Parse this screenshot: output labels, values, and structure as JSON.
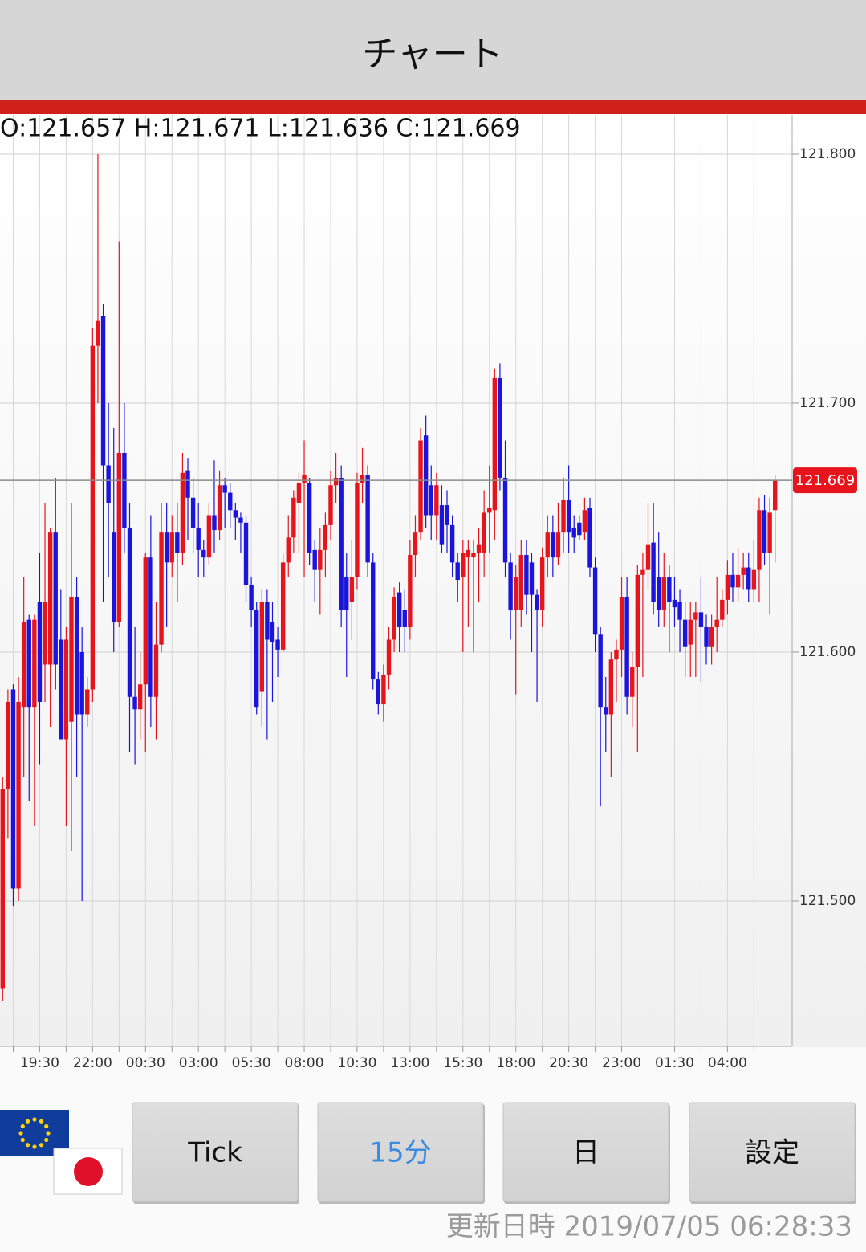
{
  "header": {
    "title": "チャート"
  },
  "chart_data": {
    "type": "candlestick",
    "ohlc_label": "O:121.657 H:121.671 L:121.636 C:121.669",
    "categories": [
      null,
      null,
      null,
      null,
      null,
      null,
      null,
      "19:30",
      null,
      null,
      null,
      null,
      null,
      null,
      null,
      null,
      null,
      "22:00",
      null,
      null,
      null,
      null,
      null,
      null,
      null,
      null,
      null,
      "00:30",
      null,
      null,
      null,
      null,
      null,
      null,
      null,
      null,
      null,
      "03:00",
      null,
      null,
      null,
      null,
      null,
      null,
      null,
      null,
      null,
      "05:30",
      null,
      null,
      null,
      null,
      null,
      null,
      null,
      null,
      null,
      "08:00",
      null,
      null,
      null,
      null,
      null,
      null,
      null,
      null,
      null,
      "10:30",
      null,
      null,
      null,
      null,
      null,
      null,
      null,
      null,
      null,
      "13:00",
      null,
      null,
      null,
      null,
      null,
      null,
      null,
      null,
      null,
      "15:30",
      null,
      null,
      null,
      null,
      null,
      null,
      null,
      null,
      null,
      "18:00",
      null,
      null,
      null,
      null,
      null,
      null,
      null,
      null,
      null,
      "20:30",
      null,
      null,
      null,
      null,
      null,
      null,
      null,
      null,
      null,
      "23:00",
      null,
      null,
      null,
      null,
      null,
      null,
      null,
      null,
      null,
      "01:30",
      null,
      null,
      null,
      null,
      null,
      null,
      null,
      null,
      null,
      "04:00",
      null,
      null,
      null,
      null,
      null,
      null,
      null,
      null,
      null
    ],
    "open": [
      121.465,
      121.545,
      121.585,
      121.505,
      121.578,
      121.613,
      121.578,
      121.62,
      121.595,
      121.595,
      121.648,
      121.605,
      121.565,
      121.572,
      121.622,
      121.6,
      121.575,
      121.585,
      121.723,
      121.735,
      121.675,
      121.648,
      121.612,
      121.68,
      121.65,
      121.582,
      121.577,
      121.587,
      121.638,
      121.582,
      121.603,
      121.648,
      121.636,
      121.648,
      121.64,
      121.673,
      121.662,
      121.65,
      121.641,
      121.638,
      121.655,
      121.649,
      121.667,
      121.664,
      121.657,
      121.654,
      121.652,
      121.627,
      121.617,
      121.584,
      121.62,
      121.612,
      121.605,
      121.601,
      121.636,
      121.646,
      121.66,
      121.668,
      121.668,
      121.641,
      121.633,
      121.641,
      121.651,
      121.667,
      121.67,
      121.63,
      121.62,
      121.63,
      121.668,
      121.671,
      121.636,
      121.589,
      121.579,
      121.591,
      121.605,
      121.624,
      121.617,
      121.61,
      121.639,
      121.648,
      121.687,
      121.667,
      121.655,
      121.659,
      121.659,
      121.651,
      121.636,
      121.63,
      121.638,
      121.638,
      121.64,
      121.64,
      121.656,
      121.657,
      121.71,
      121.67,
      121.636,
      121.617,
      121.617,
      121.639,
      121.636,
      121.623,
      121.617,
      121.638,
      121.648,
      121.638,
      121.648,
      121.661,
      121.65,
      121.652,
      121.648,
      121.658,
      121.634,
      121.607,
      121.578,
      121.575,
      121.597,
      121.601,
      121.622,
      121.582,
      121.594,
      121.631,
      121.633,
      121.644,
      121.63,
      121.617,
      121.63,
      121.621,
      121.62,
      121.613,
      121.603,
      121.613,
      121.616,
      121.61,
      121.602,
      121.61,
      121.613,
      121.621,
      121.631,
      121.626,
      121.631,
      121.634,
      121.625,
      121.633,
      121.657,
      121.64,
      121.657
    ],
    "high": [
      121.55,
      121.585,
      121.587,
      121.59,
      121.63,
      121.615,
      121.615,
      121.64,
      121.66,
      121.65,
      121.67,
      121.625,
      121.61,
      121.66,
      121.63,
      121.61,
      121.59,
      121.73,
      121.8,
      121.74,
      121.7,
      121.69,
      121.765,
      121.7,
      121.66,
      121.61,
      121.6,
      121.64,
      121.655,
      121.62,
      121.66,
      121.66,
      121.655,
      121.66,
      121.68,
      121.678,
      121.67,
      121.66,
      121.645,
      121.66,
      121.677,
      121.673,
      121.67,
      121.668,
      121.66,
      121.656,
      121.655,
      121.63,
      121.62,
      121.625,
      121.625,
      121.62,
      121.61,
      121.64,
      121.655,
      121.665,
      121.672,
      121.685,
      121.67,
      121.645,
      121.65,
      121.656,
      121.673,
      121.68,
      121.675,
      121.64,
      121.645,
      121.672,
      121.682,
      121.675,
      121.64,
      121.592,
      121.595,
      121.61,
      121.626,
      121.628,
      121.625,
      121.645,
      121.655,
      121.69,
      121.695,
      121.675,
      121.672,
      121.667,
      121.665,
      121.655,
      121.64,
      121.645,
      121.645,
      121.645,
      121.65,
      121.665,
      121.675,
      121.714,
      121.716,
      121.685,
      121.64,
      121.635,
      121.645,
      121.645,
      121.64,
      121.625,
      121.642,
      121.655,
      121.655,
      121.66,
      121.67,
      121.675,
      121.655,
      121.655,
      121.662,
      121.662,
      121.638,
      121.61,
      121.59,
      121.6,
      121.605,
      121.63,
      121.63,
      121.6,
      121.635,
      121.64,
      121.66,
      121.66,
      121.648,
      121.64,
      121.635,
      121.63,
      121.625,
      121.62,
      121.62,
      121.62,
      121.63,
      121.615,
      121.615,
      121.63,
      121.625,
      121.637,
      121.64,
      121.642,
      121.64,
      121.64,
      121.645,
      121.662,
      121.663,
      121.662,
      121.671
    ],
    "low": [
      121.46,
      121.525,
      121.498,
      121.5,
      121.55,
      121.54,
      121.53,
      121.555,
      121.58,
      121.57,
      121.585,
      121.565,
      121.53,
      121.52,
      121.55,
      121.5,
      121.57,
      121.58,
      121.7,
      121.62,
      121.63,
      121.6,
      121.61,
      121.64,
      121.56,
      121.555,
      121.565,
      121.56,
      121.57,
      121.565,
      121.6,
      121.61,
      121.63,
      121.62,
      121.635,
      121.645,
      121.64,
      121.63,
      121.63,
      121.635,
      121.64,
      121.645,
      121.65,
      121.65,
      121.645,
      121.64,
      121.62,
      121.61,
      121.575,
      121.57,
      121.565,
      121.58,
      121.59,
      121.6,
      121.63,
      121.64,
      121.64,
      121.63,
      121.635,
      121.62,
      121.615,
      121.63,
      121.645,
      121.66,
      121.61,
      121.59,
      121.605,
      121.625,
      121.66,
      121.63,
      121.585,
      121.575,
      121.572,
      121.585,
      121.6,
      121.6,
      121.6,
      121.605,
      121.63,
      121.645,
      121.65,
      121.645,
      121.645,
      121.64,
      121.64,
      121.63,
      121.62,
      121.6,
      121.61,
      121.6,
      121.62,
      121.63,
      121.64,
      121.645,
      121.665,
      121.63,
      121.605,
      121.583,
      121.61,
      121.615,
      121.6,
      121.58,
      121.61,
      121.63,
      121.63,
      121.635,
      121.64,
      121.64,
      121.64,
      121.645,
      121.645,
      121.63,
      121.6,
      121.538,
      121.56,
      121.55,
      121.58,
      121.59,
      121.575,
      121.57,
      121.56,
      121.59,
      121.625,
      121.615,
      121.61,
      121.61,
      121.6,
      121.61,
      121.6,
      121.59,
      121.59,
      121.59,
      121.588,
      121.595,
      121.595,
      121.6,
      121.61,
      121.615,
      121.62,
      121.62,
      121.625,
      121.62,
      121.62,
      121.62,
      121.635,
      121.615,
      121.636
    ],
    "close": [
      121.545,
      121.58,
      121.505,
      121.58,
      121.612,
      121.578,
      121.613,
      121.58,
      121.62,
      121.648,
      121.595,
      121.565,
      121.605,
      121.622,
      121.575,
      121.575,
      121.585,
      121.723,
      121.733,
      121.675,
      121.66,
      121.612,
      121.68,
      121.65,
      121.582,
      121.577,
      121.587,
      121.638,
      121.582,
      121.603,
      121.648,
      121.636,
      121.648,
      121.64,
      121.672,
      121.662,
      121.65,
      121.641,
      121.638,
      121.655,
      121.649,
      121.667,
      121.664,
      121.657,
      121.654,
      121.652,
      121.627,
      121.617,
      121.578,
      121.62,
      121.605,
      121.604,
      121.601,
      121.636,
      121.646,
      121.662,
      121.668,
      121.671,
      121.64,
      121.633,
      121.641,
      121.651,
      121.667,
      121.67,
      121.617,
      121.617,
      121.63,
      121.668,
      121.671,
      121.636,
      121.589,
      121.579,
      121.591,
      121.605,
      121.622,
      121.61,
      121.61,
      121.639,
      121.648,
      121.685,
      121.655,
      121.655,
      121.667,
      121.643,
      121.651,
      121.636,
      121.629,
      121.64,
      121.641,
      121.64,
      121.643,
      121.656,
      121.658,
      121.71,
      121.67,
      121.636,
      121.617,
      121.63,
      121.639,
      121.623,
      121.623,
      121.617,
      121.638,
      121.648,
      121.638,
      121.648,
      121.661,
      121.648,
      121.646,
      121.647,
      121.657,
      121.634,
      121.607,
      121.578,
      121.575,
      121.597,
      121.601,
      121.622,
      121.582,
      121.594,
      121.631,
      121.633,
      121.643,
      121.62,
      121.617,
      121.63,
      121.62,
      121.618,
      121.613,
      121.602,
      121.613,
      121.616,
      121.61,
      121.602,
      121.61,
      121.613,
      121.621,
      121.631,
      121.626,
      121.631,
      121.634,
      121.625,
      121.633,
      121.657,
      121.64,
      121.656,
      121.669
    ],
    "up_color": "#e8141c",
    "down_color": "#1a14dc",
    "current_price": 121.669,
    "current_price_color": "#e8141c",
    "ylim": [
      121.4416,
      121.8158
    ],
    "yticks": [
      {
        "value": 121.5,
        "label": "121.500"
      },
      {
        "value": 121.6,
        "label": "121.600"
      },
      {
        "value": 121.7,
        "label": "121.700"
      },
      {
        "value": 121.8,
        "label": "121.800"
      }
    ],
    "grid": true
  },
  "buttons": [
    "Tick",
    "15分",
    "日",
    "設定"
  ],
  "footer": {
    "updated": "更新日時 2019/07/05 06:28:33"
  }
}
